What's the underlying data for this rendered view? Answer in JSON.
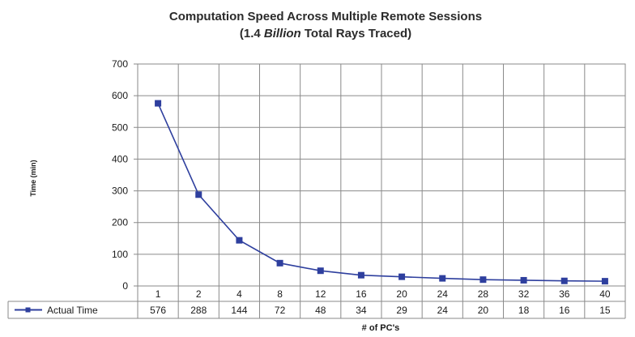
{
  "chart_data": {
    "type": "line",
    "title": "Computation Speed Across Multiple Remote Sessions",
    "subtitle_prefix": "(1.4 ",
    "subtitle_italic": "Billion",
    "subtitle_suffix": "  Total Rays Traced)",
    "xlabel": "# of PC's",
    "ylabel": "Time (min)",
    "ylim": [
      0,
      700
    ],
    "yticks": [
      0,
      100,
      200,
      300,
      400,
      500,
      600,
      700
    ],
    "categories": [
      "1",
      "2",
      "4",
      "8",
      "12",
      "16",
      "20",
      "24",
      "28",
      "32",
      "36",
      "40"
    ],
    "series": [
      {
        "name": "Actual Time",
        "values": [
          576,
          288,
          144,
          72,
          48,
          34,
          29,
          24,
          20,
          18,
          16,
          15
        ]
      }
    ],
    "grid": true,
    "legend": "data-table-bottom",
    "series_color": "#2e3f9e",
    "grid_color": "#8a8a8a"
  }
}
